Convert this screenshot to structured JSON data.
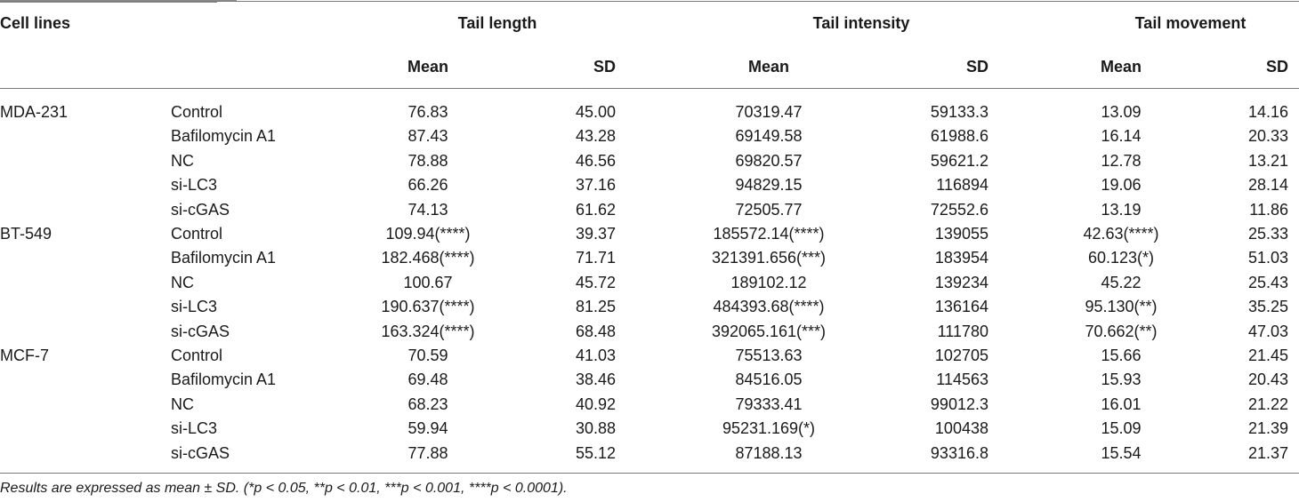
{
  "header": {
    "cell_lines": "Cell lines",
    "groups": [
      "Tail length",
      "Tail intensity",
      "Tail movement"
    ],
    "mean": "Mean",
    "sd": "SD"
  },
  "rows": [
    {
      "line": "MDA-231",
      "treatment": "Control",
      "tl_mean": "76.83",
      "tl_sd": "45.00",
      "ti_mean": "70319.47",
      "ti_sd": "59133.3",
      "tm_mean": "13.09",
      "tm_sd": "14.16"
    },
    {
      "line": "",
      "treatment": "Bafilomycin A1",
      "tl_mean": "87.43",
      "tl_sd": "43.28",
      "ti_mean": "69149.58",
      "ti_sd": "61988.6",
      "tm_mean": "16.14",
      "tm_sd": "20.33"
    },
    {
      "line": "",
      "treatment": "NC",
      "tl_mean": "78.88",
      "tl_sd": "46.56",
      "ti_mean": "69820.57",
      "ti_sd": "59621.2",
      "tm_mean": "12.78",
      "tm_sd": "13.21"
    },
    {
      "line": "",
      "treatment": "si-LC3",
      "tl_mean": "66.26",
      "tl_sd": "37.16",
      "ti_mean": "94829.15",
      "ti_sd": "116894",
      "tm_mean": "19.06",
      "tm_sd": "28.14"
    },
    {
      "line": "",
      "treatment": "si-cGAS",
      "tl_mean": "74.13",
      "tl_sd": "61.62",
      "ti_mean": "72505.77",
      "ti_sd": "72552.6",
      "tm_mean": "13.19",
      "tm_sd": "11.86"
    },
    {
      "line": "BT-549",
      "treatment": "Control",
      "tl_mean": "109.94(****)",
      "tl_sd": "39.37",
      "ti_mean": "185572.14(****)",
      "ti_sd": "139055",
      "tm_mean": "42.63(****)",
      "tm_sd": "25.33"
    },
    {
      "line": "",
      "treatment": "Bafilomycin A1",
      "tl_mean": "182.468(****)",
      "tl_sd": "71.71",
      "ti_mean": "321391.656(***)",
      "ti_sd": "183954",
      "tm_mean": "60.123(*)",
      "tm_sd": "51.03"
    },
    {
      "line": "",
      "treatment": "NC",
      "tl_mean": "100.67",
      "tl_sd": "45.72",
      "ti_mean": "189102.12",
      "ti_sd": "139234",
      "tm_mean": "45.22",
      "tm_sd": "25.43"
    },
    {
      "line": "",
      "treatment": "si-LC3",
      "tl_mean": "190.637(****)",
      "tl_sd": "81.25",
      "ti_mean": "484393.68(****)",
      "ti_sd": "136164",
      "tm_mean": "95.130(**)",
      "tm_sd": "35.25"
    },
    {
      "line": "",
      "treatment": "si-cGAS",
      "tl_mean": "163.324(****)",
      "tl_sd": "68.48",
      "ti_mean": "392065.161(***)",
      "ti_sd": "111780",
      "tm_mean": "70.662(**)",
      "tm_sd": "47.03"
    },
    {
      "line": "MCF-7",
      "treatment": "Control",
      "tl_mean": "70.59",
      "tl_sd": "41.03",
      "ti_mean": "75513.63",
      "ti_sd": "102705",
      "tm_mean": "15.66",
      "tm_sd": "21.45"
    },
    {
      "line": "",
      "treatment": "Bafilomycin A1",
      "tl_mean": "69.48",
      "tl_sd": "38.46",
      "ti_mean": "84516.05",
      "ti_sd": "114563",
      "tm_mean": "15.93",
      "tm_sd": "20.43"
    },
    {
      "line": "",
      "treatment": "NC",
      "tl_mean": "68.23",
      "tl_sd": "40.92",
      "ti_mean": "79333.41",
      "ti_sd": "99012.3",
      "tm_mean": "16.01",
      "tm_sd": "21.22"
    },
    {
      "line": "",
      "treatment": "si-LC3",
      "tl_mean": "59.94",
      "tl_sd": "30.88",
      "ti_mean": "95231.169(*)",
      "ti_sd": "100438",
      "tm_mean": "15.09",
      "tm_sd": "21.39"
    },
    {
      "line": "",
      "treatment": "si-cGAS",
      "tl_mean": "77.88",
      "tl_sd": "55.12",
      "ti_mean": "87188.13",
      "ti_sd": "93316.8",
      "tm_mean": "15.54",
      "tm_sd": "21.37"
    }
  ],
  "footnote": "Results are expressed as mean ± SD. (*p < 0.05, **p < 0.01, ***p < 0.001, ****p < 0.0001)."
}
